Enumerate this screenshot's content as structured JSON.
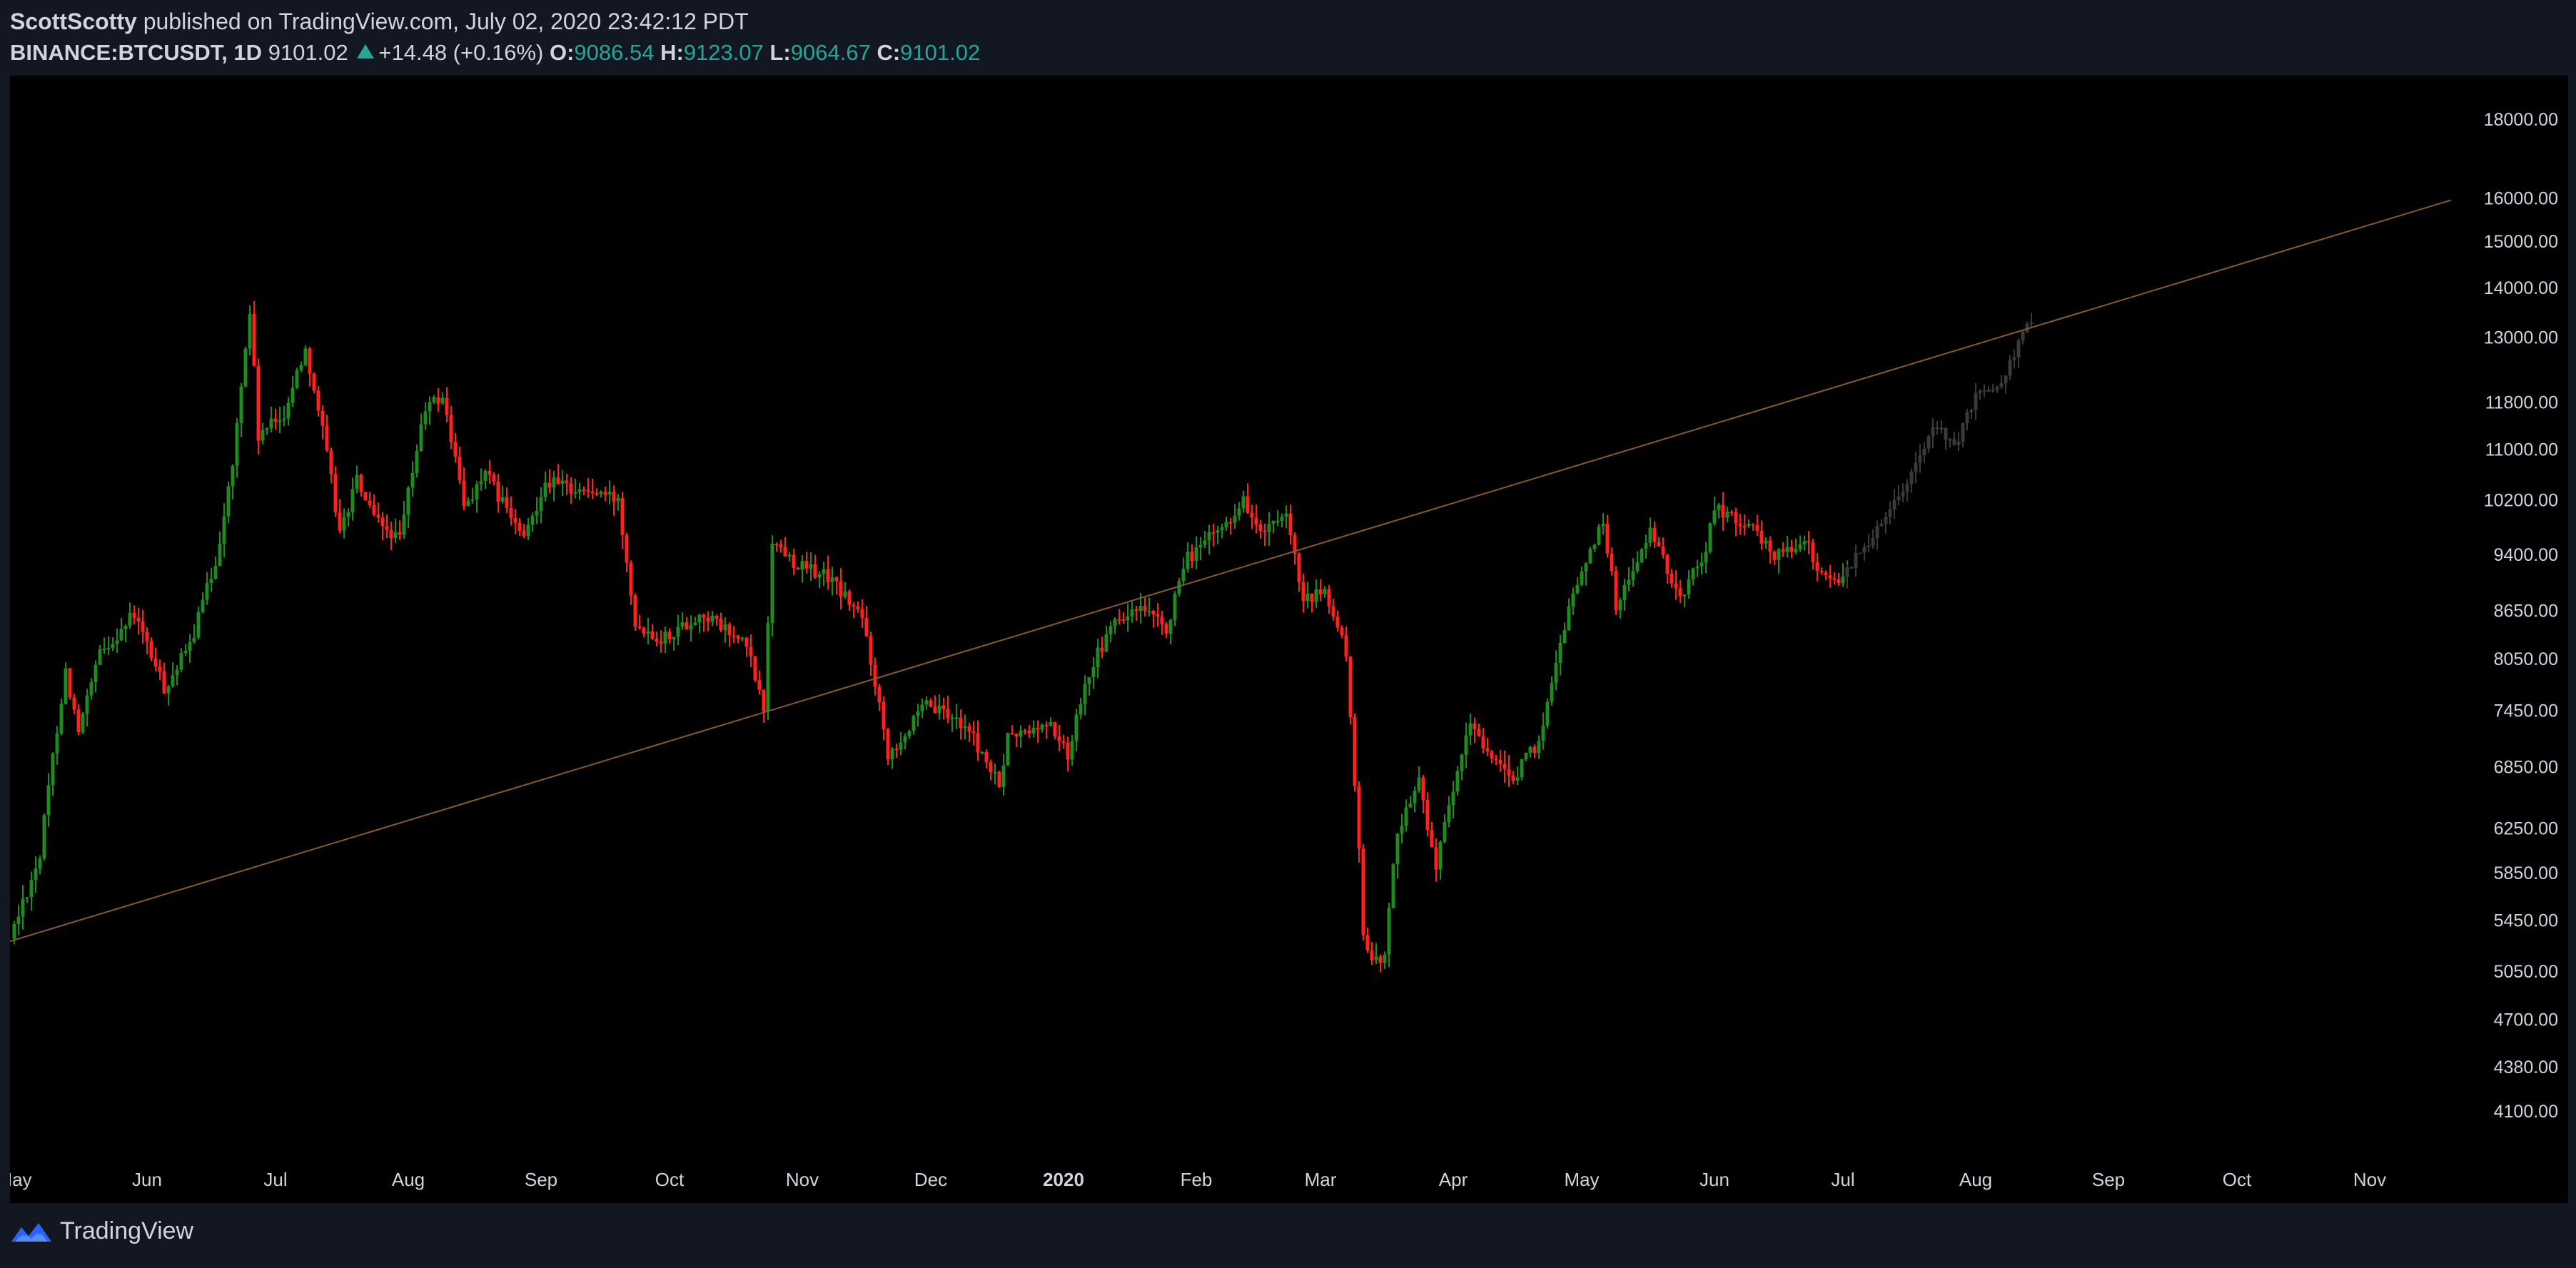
{
  "header": {
    "author": "ScottScotty",
    "published_text": "published on TradingView.com, July 02, 2020 23:42:12 PDT",
    "symbol": "BINANCE:BTCUSDT, 1D",
    "price": "9101.02",
    "change": "+14.48 (+0.16%)",
    "o_label": "O:",
    "o_value": "9086.54",
    "h_label": "H:",
    "h_value": "9123.07",
    "l_label": "L:",
    "l_value": "9064.67",
    "c_label": "C:",
    "c_value": "9101.02"
  },
  "footer": {
    "brand": "TradingView"
  },
  "colors": {
    "up": "#26a69a",
    "candle_up": "#1f8a1f",
    "candle_down": "#ff2020",
    "projection": "#3a3a3a",
    "trendline": "#8a5a2b",
    "axis_text": "#d1d4dc"
  },
  "chart_data": {
    "type": "candlestick",
    "scale": "log",
    "ylim": [
      3850,
      19000
    ],
    "y_ticks": [
      "18000.00",
      "16000.00",
      "15000.00",
      "14000.00",
      "13000.00",
      "11800.00",
      "11000.00",
      "10200.00",
      "9400.00",
      "8650.00",
      "8050.00",
      "7450.00",
      "6850.00",
      "6250.00",
      "5850.00",
      "5450.00",
      "5050.00",
      "4700.00",
      "4380.00",
      "4100.00"
    ],
    "x_ticks": [
      {
        "date": "2019-05-01",
        "label": "May"
      },
      {
        "date": "2019-06-01",
        "label": "Jun"
      },
      {
        "date": "2019-07-01",
        "label": "Jul"
      },
      {
        "date": "2019-08-01",
        "label": "Aug"
      },
      {
        "date": "2019-09-01",
        "label": "Sep"
      },
      {
        "date": "2019-10-01",
        "label": "Oct"
      },
      {
        "date": "2019-11-01",
        "label": "Nov"
      },
      {
        "date": "2019-12-01",
        "label": "Dec"
      },
      {
        "date": "2020-01-01",
        "label": "2020",
        "bold": true
      },
      {
        "date": "2020-02-01",
        "label": "Feb"
      },
      {
        "date": "2020-03-01",
        "label": "Mar"
      },
      {
        "date": "2020-04-01",
        "label": "Apr"
      },
      {
        "date": "2020-05-01",
        "label": "May"
      },
      {
        "date": "2020-06-01",
        "label": "Jun"
      },
      {
        "date": "2020-07-01",
        "label": "Jul"
      },
      {
        "date": "2020-08-01",
        "label": "Aug"
      },
      {
        "date": "2020-09-01",
        "label": "Sep"
      },
      {
        "date": "2020-10-01",
        "label": "Oct"
      },
      {
        "date": "2020-11-01",
        "label": "Nov"
      }
    ],
    "x_range": [
      "2019-04-30",
      "2020-11-25"
    ],
    "price_path": [
      [
        "2019-05-01",
        5300
      ],
      [
        "2019-05-08",
        6000
      ],
      [
        "2019-05-14",
        7900
      ],
      [
        "2019-05-17",
        7200
      ],
      [
        "2019-05-22",
        8100
      ],
      [
        "2019-05-30",
        8600
      ],
      [
        "2019-06-06",
        7700
      ],
      [
        "2019-06-12",
        8200
      ],
      [
        "2019-06-18",
        9300
      ],
      [
        "2019-06-22",
        10700
      ],
      [
        "2019-06-26",
        13500
      ],
      [
        "2019-06-28",
        11200
      ],
      [
        "2019-07-04",
        11600
      ],
      [
        "2019-07-09",
        12800
      ],
      [
        "2019-07-13",
        11300
      ],
      [
        "2019-07-17",
        9700
      ],
      [
        "2019-07-21",
        10500
      ],
      [
        "2019-07-25",
        9900
      ],
      [
        "2019-07-31",
        9600
      ],
      [
        "2019-08-06",
        11700
      ],
      [
        "2019-08-10",
        11900
      ],
      [
        "2019-08-15",
        10100
      ],
      [
        "2019-08-20",
        10600
      ],
      [
        "2019-08-29",
        9600
      ],
      [
        "2019-09-03",
        10500
      ],
      [
        "2019-09-08",
        10400
      ],
      [
        "2019-09-15",
        10300
      ],
      [
        "2019-09-20",
        10200
      ],
      [
        "2019-09-24",
        8500
      ],
      [
        "2019-09-30",
        8300
      ],
      [
        "2019-10-10",
        8600
      ],
      [
        "2019-10-20",
        8200
      ],
      [
        "2019-10-24",
        7450
      ],
      [
        "2019-10-26",
        9600
      ],
      [
        "2019-11-01",
        9250
      ],
      [
        "2019-11-08",
        9100
      ],
      [
        "2019-11-16",
        8550
      ],
      [
        "2019-11-22",
        7000
      ],
      [
        "2019-11-26",
        7200
      ],
      [
        "2019-12-01",
        7500
      ],
      [
        "2019-12-10",
        7300
      ],
      [
        "2019-12-18",
        6650
      ],
      [
        "2019-12-20",
        7150
      ],
      [
        "2019-12-30",
        7300
      ],
      [
        "2020-01-03",
        6950
      ],
      [
        "2020-01-07",
        7800
      ],
      [
        "2020-01-14",
        8500
      ],
      [
        "2020-01-20",
        8650
      ],
      [
        "2020-01-26",
        8400
      ],
      [
        "2020-01-31",
        9350
      ],
      [
        "2020-02-09",
        9850
      ],
      [
        "2020-02-13",
        10200
      ],
      [
        "2020-02-17",
        9700
      ],
      [
        "2020-02-23",
        9900
      ],
      [
        "2020-02-27",
        8750
      ],
      [
        "2020-03-03",
        8900
      ],
      [
        "2020-03-08",
        8100
      ],
      [
        "2020-03-12",
        5300
      ],
      [
        "2020-03-13",
        5200
      ],
      [
        "2020-03-17",
        5150
      ],
      [
        "2020-03-20",
        6250
      ],
      [
        "2020-03-25",
        6700
      ],
      [
        "2020-03-29",
        5900
      ],
      [
        "2020-04-06",
        7300
      ],
      [
        "2020-04-15",
        6700
      ],
      [
        "2020-04-22",
        7100
      ],
      [
        "2020-04-29",
        8700
      ],
      [
        "2020-05-07",
        9900
      ],
      [
        "2020-05-10",
        8700
      ],
      [
        "2020-05-18",
        9700
      ],
      [
        "2020-05-25",
        8800
      ],
      [
        "2020-05-31",
        9500
      ],
      [
        "2020-06-02",
        10100
      ],
      [
        "2020-06-10",
        9800
      ],
      [
        "2020-06-16",
        9400
      ],
      [
        "2020-06-23",
        9600
      ],
      [
        "2020-06-27",
        9100
      ],
      [
        "2020-07-02",
        9101
      ]
    ],
    "projection_path": [
      [
        "2020-07-02",
        9101
      ],
      [
        "2020-07-08",
        9600
      ],
      [
        "2020-07-16",
        10400
      ],
      [
        "2020-07-20",
        10900
      ],
      [
        "2020-07-24",
        11400
      ],
      [
        "2020-07-28",
        11000
      ],
      [
        "2020-08-02",
        11900
      ],
      [
        "2020-08-08",
        12200
      ],
      [
        "2020-08-14",
        13200
      ]
    ],
    "trendline": [
      [
        "2019-04-30",
        5280
      ],
      [
        "2020-11-20",
        15950
      ]
    ]
  }
}
